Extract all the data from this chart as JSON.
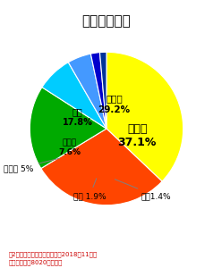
{
  "title": "歯を失う原因",
  "labels": [
    "歯周病",
    "むし歯",
    "破折",
    "その他",
    "埋伏歯",
    "矯正",
    "不明"
  ],
  "values": [
    37.1,
    29.2,
    17.8,
    7.6,
    5.0,
    1.9,
    1.4
  ],
  "colors": [
    "#FFFF00",
    "#FF4500",
    "#00AA00",
    "#00CCFF",
    "#4499FF",
    "#0000CC",
    "#003399"
  ],
  "footnote1": "第2回永久歯の抜歯原因調査（2018年11月）",
  "footnote2": "公益社団法人8020推進財団",
  "background_color": "#FFFFFF",
  "title_color": "#000000",
  "title_fontsize": 11,
  "footnote_fontsize": 5.5
}
